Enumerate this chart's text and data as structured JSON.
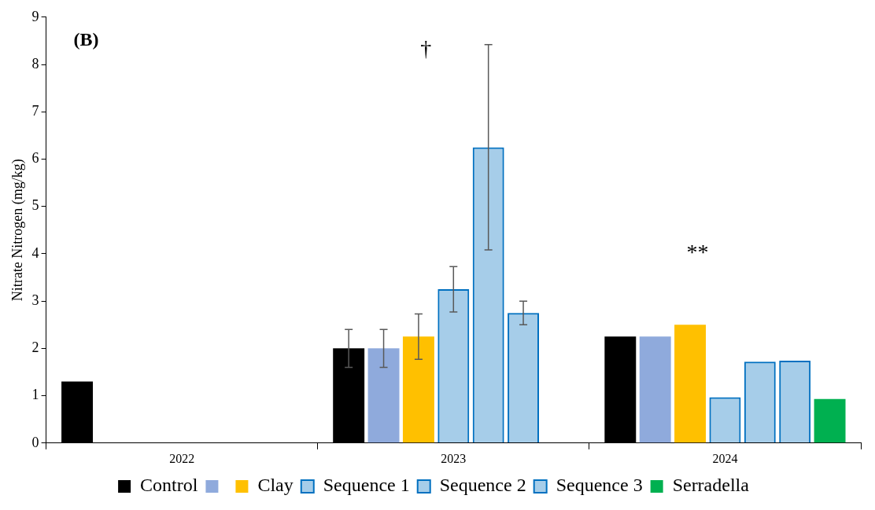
{
  "chart_data": {
    "type": "bar",
    "ylabel": "Nitrate Nitrogen (mg/kg)",
    "categories": [
      "2022",
      "2023",
      "2024"
    ],
    "series": [
      {
        "name": "Control",
        "color": "#000000",
        "values": [
          1.3,
          2.0,
          2.25
        ],
        "errors": [
          null,
          0.4,
          null
        ]
      },
      {
        "color": "#8faadc",
        "values": [
          null,
          2.0,
          2.25
        ],
        "errors": [
          null,
          0.4,
          null
        ]
      },
      {
        "name": "Clay",
        "color": "#ffc000",
        "values": [
          null,
          2.25,
          2.5
        ],
        "errors": [
          null,
          0.48,
          null
        ]
      },
      {
        "name": "Sequence 1",
        "color": "#0070c0",
        "values": [
          null,
          3.25,
          0.97
        ],
        "errors": [
          null,
          0.48,
          null
        ]
      },
      {
        "name": "Sequence 2",
        "color": "#0070c0",
        "values": [
          null,
          6.25,
          1.72
        ],
        "errors": [
          null,
          [
            4.08,
            8.42
          ],
          null
        ]
      },
      {
        "name": "Sequence 3",
        "color": "#0070c0",
        "values": [
          null,
          2.75,
          1.74
        ],
        "errors": [
          null,
          0.25,
          null
        ]
      },
      {
        "name": "Serradella",
        "color": "#00b050",
        "values": [
          null,
          null,
          0.93
        ],
        "errors": [
          null,
          null,
          null
        ]
      }
    ],
    "ylim": [
      0,
      9
    ],
    "yticks": [
      0,
      1,
      2,
      3,
      4,
      5,
      6,
      7,
      8,
      9
    ],
    "grid": false,
    "legend": "bottom",
    "annotations": [
      "(B)",
      "†",
      "**"
    ]
  }
}
